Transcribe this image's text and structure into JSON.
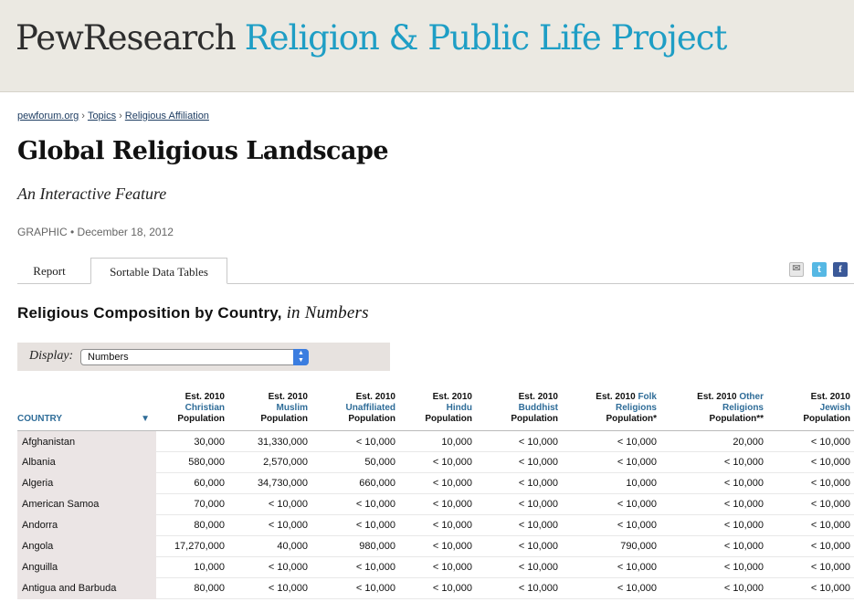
{
  "header": {
    "brand_pew": "PewResearch",
    "brand_project": "Religion & Public Life Project"
  },
  "breadcrumb": {
    "items": [
      "pewforum.org",
      "Topics",
      "Religious Affiliation"
    ],
    "separator": "›"
  },
  "page": {
    "title": "Global Religious Landscape",
    "subtitle": "An Interactive Feature",
    "meta": "GRAPHIC • December 18, 2012"
  },
  "tabs": [
    {
      "label": "Report",
      "active": false
    },
    {
      "label": "Sortable Data Tables",
      "active": true
    }
  ],
  "share_icons": [
    "email-icon",
    "twitter-icon",
    "facebook-icon"
  ],
  "section": {
    "title_main": "Religious Composition by Country,",
    "title_italic": "in Numbers"
  },
  "display": {
    "label": "Display:",
    "selected": "Numbers"
  },
  "table": {
    "columns": [
      {
        "line1": "",
        "line2": "",
        "line3": "COUNTRY"
      },
      {
        "line1": "Est. 2010",
        "line2": "Christian",
        "line3": "Population"
      },
      {
        "line1": "Est. 2010",
        "line2": "Muslim",
        "line3": "Population"
      },
      {
        "line1": "Est. 2010",
        "line2": "Unaffiliated",
        "line3": "Population"
      },
      {
        "line1": "Est. 2010",
        "line2": "Hindu",
        "line3": "Population"
      },
      {
        "line1": "Est. 2010",
        "line2": "Buddhist",
        "line3": "Population"
      },
      {
        "line1": "Est. 2010",
        "line1_accent": "Folk",
        "line2": "Religions",
        "line3": "Population*"
      },
      {
        "line1": "Est. 2010",
        "line1_accent": "Other",
        "line2": "Religions",
        "line3": "Population**"
      },
      {
        "line1": "Est. 2010",
        "line2": "Jewish",
        "line3": "Population"
      }
    ],
    "sort_indicator": "▼",
    "rows": [
      [
        "Afghanistan",
        "30,000",
        "31,330,000",
        "< 10,000",
        "10,000",
        "< 10,000",
        "< 10,000",
        "20,000",
        "< 10,000"
      ],
      [
        "Albania",
        "580,000",
        "2,570,000",
        "50,000",
        "< 10,000",
        "< 10,000",
        "< 10,000",
        "< 10,000",
        "< 10,000"
      ],
      [
        "Algeria",
        "60,000",
        "34,730,000",
        "660,000",
        "< 10,000",
        "< 10,000",
        "10,000",
        "< 10,000",
        "< 10,000"
      ],
      [
        "American Samoa",
        "70,000",
        "< 10,000",
        "< 10,000",
        "< 10,000",
        "< 10,000",
        "< 10,000",
        "< 10,000",
        "< 10,000"
      ],
      [
        "Andorra",
        "80,000",
        "< 10,000",
        "< 10,000",
        "< 10,000",
        "< 10,000",
        "< 10,000",
        "< 10,000",
        "< 10,000"
      ],
      [
        "Angola",
        "17,270,000",
        "40,000",
        "980,000",
        "< 10,000",
        "< 10,000",
        "790,000",
        "< 10,000",
        "< 10,000"
      ],
      [
        "Anguilla",
        "10,000",
        "< 10,000",
        "< 10,000",
        "< 10,000",
        "< 10,000",
        "< 10,000",
        "< 10,000",
        "< 10,000"
      ],
      [
        "Antigua and Barbuda",
        "80,000",
        "< 10,000",
        "< 10,000",
        "< 10,000",
        "< 10,000",
        "< 10,000",
        "< 10,000",
        "< 10,000"
      ]
    ]
  },
  "colors": {
    "brand_blue": "#1e9ec5",
    "link_blue": "#2e6c98",
    "masthead_bg": "#ebe9e2",
    "country_col_bg": "#ebe5e5"
  }
}
